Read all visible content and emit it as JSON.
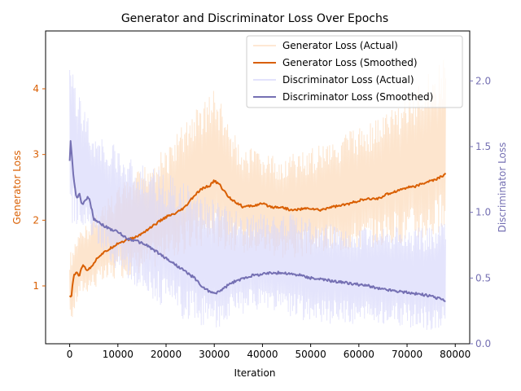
{
  "chart_data": {
    "type": "line",
    "title": "Generator and Discriminator Loss Over Epochs",
    "xlabel": "Iteration",
    "ylabel_left": "Generator Loss",
    "ylabel_right": "Discriminator Loss",
    "xlim": [
      -5000,
      83000
    ],
    "ylim_left": [
      0.12,
      4.88
    ],
    "ylim_right": [
      0.0,
      2.38
    ],
    "x_ticks": [
      0,
      10000,
      20000,
      30000,
      40000,
      50000,
      60000,
      70000,
      80000
    ],
    "y_ticks_left": [
      1,
      2,
      3,
      4
    ],
    "y_ticks_right": [
      0.0,
      0.5,
      1.0,
      1.5,
      2.0
    ],
    "grid": false,
    "legend_position": "upper right",
    "colors": {
      "generator": "#d95f02",
      "discriminator": "#7570b3",
      "generator_band": "#fde0c5",
      "discriminator_band": "#d9d9fb"
    },
    "series": [
      {
        "name": "Generator Loss (Actual)",
        "axis": "left",
        "style": "noisy band",
        "x": [
          0,
          2000,
          5000,
          10000,
          15000,
          20000,
          25000,
          30000,
          35000,
          40000,
          45000,
          50000,
          55000,
          60000,
          65000,
          70000,
          75000,
          78000
        ],
        "lower": [
          0.35,
          0.85,
          0.95,
          1.1,
          1.2,
          1.35,
          1.5,
          1.6,
          1.5,
          1.5,
          1.4,
          1.45,
          1.5,
          1.55,
          1.6,
          1.65,
          1.7,
          1.75
        ],
        "upper": [
          1.5,
          1.8,
          2.1,
          2.5,
          2.8,
          3.1,
          3.6,
          4.0,
          3.2,
          3.0,
          3.0,
          3.1,
          3.3,
          3.4,
          3.6,
          3.9,
          4.3,
          4.5
        ]
      },
      {
        "name": "Generator Loss (Smoothed)",
        "axis": "left",
        "x": [
          0,
          300,
          800,
          1500,
          2000,
          2500,
          3000,
          3500,
          4000,
          5000,
          6000,
          7000,
          8000,
          9000,
          10000,
          12000,
          14000,
          16000,
          18000,
          20000,
          22000,
          24000,
          25000,
          26000,
          27000,
          28000,
          29000,
          30000,
          31000,
          32000,
          33000,
          34000,
          35000,
          36000,
          38000,
          40000,
          42000,
          44000,
          46000,
          48000,
          50000,
          52000,
          54000,
          56000,
          58000,
          60000,
          62000,
          64000,
          66000,
          68000,
          70000,
          72000,
          74000,
          76000,
          78000
        ],
        "y": [
          0.85,
          0.8,
          1.15,
          1.2,
          1.15,
          1.3,
          1.3,
          1.25,
          1.25,
          1.35,
          1.45,
          1.5,
          1.55,
          1.6,
          1.65,
          1.7,
          1.75,
          1.85,
          1.95,
          2.05,
          2.1,
          2.2,
          2.3,
          2.38,
          2.45,
          2.5,
          2.52,
          2.6,
          2.55,
          2.45,
          2.35,
          2.3,
          2.25,
          2.2,
          2.22,
          2.25,
          2.2,
          2.2,
          2.15,
          2.17,
          2.18,
          2.15,
          2.2,
          2.22,
          2.25,
          2.3,
          2.32,
          2.33,
          2.4,
          2.45,
          2.5,
          2.52,
          2.58,
          2.62,
          2.7
        ]
      },
      {
        "name": "Discriminator Loss (Actual)",
        "axis": "right",
        "style": "noisy band",
        "x": [
          0,
          2000,
          5000,
          10000,
          15000,
          20000,
          25000,
          30000,
          35000,
          40000,
          45000,
          50000,
          55000,
          60000,
          65000,
          70000,
          75000,
          78000
        ],
        "lower": [
          0.9,
          0.9,
          0.75,
          0.55,
          0.4,
          0.25,
          0.15,
          0.1,
          0.2,
          0.25,
          0.2,
          0.15,
          0.15,
          0.15,
          0.15,
          0.12,
          0.1,
          0.1
        ],
        "upper": [
          2.2,
          1.9,
          1.6,
          1.5,
          1.4,
          1.3,
          1.2,
          1.1,
          1.0,
          1.0,
          1.0,
          0.95,
          0.9,
          0.9,
          0.9,
          0.9,
          0.9,
          0.95
        ]
      },
      {
        "name": "Discriminator Loss (Smoothed)",
        "axis": "right",
        "x": [
          0,
          200,
          600,
          1000,
          1500,
          2000,
          2500,
          3000,
          3500,
          4000,
          5000,
          6000,
          7000,
          8000,
          10000,
          12000,
          14000,
          16000,
          18000,
          20000,
          22000,
          24000,
          25000,
          26000,
          27000,
          28000,
          29000,
          30000,
          31000,
          32000,
          33000,
          34000,
          35000,
          36000,
          38000,
          40000,
          42000,
          44000,
          46000,
          48000,
          50000,
          52000,
          54000,
          56000,
          58000,
          60000,
          62000,
          64000,
          66000,
          68000,
          70000,
          72000,
          74000,
          76000,
          78000
        ],
        "y": [
          1.4,
          1.55,
          1.35,
          1.2,
          1.1,
          1.15,
          1.05,
          1.08,
          1.1,
          1.12,
          0.95,
          0.93,
          0.9,
          0.88,
          0.85,
          0.8,
          0.78,
          0.75,
          0.7,
          0.65,
          0.6,
          0.55,
          0.52,
          0.5,
          0.45,
          0.42,
          0.4,
          0.38,
          0.4,
          0.42,
          0.45,
          0.47,
          0.48,
          0.5,
          0.52,
          0.53,
          0.54,
          0.54,
          0.53,
          0.52,
          0.5,
          0.49,
          0.48,
          0.47,
          0.46,
          0.45,
          0.44,
          0.42,
          0.41,
          0.4,
          0.39,
          0.38,
          0.37,
          0.35,
          0.33
        ]
      }
    ]
  }
}
